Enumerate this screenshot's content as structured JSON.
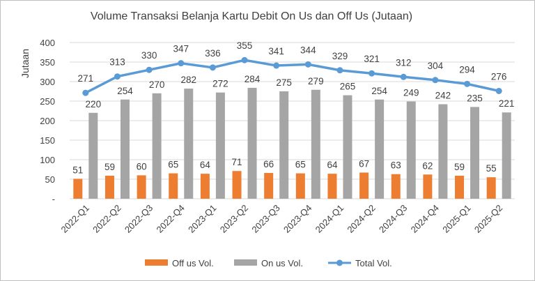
{
  "chart_data": {
    "type": "bar",
    "title": "Volume Transaksi Belanja Kartu Debit On Us dan Off Us (Jutaan)",
    "ylabel": "Jutaan",
    "xlabel": "",
    "ylim": [
      0,
      400
    ],
    "yticks": [
      "-",
      "50",
      "100",
      "150",
      "200",
      "250",
      "300",
      "350",
      "400"
    ],
    "grid": true,
    "legend_position": "bottom",
    "categories": [
      "2022-Q1",
      "2022-Q2",
      "2022-Q3",
      "2022-Q4",
      "2023-Q1",
      "2023-Q2",
      "2023-Q3",
      "2023-Q4",
      "2024-Q1",
      "2024-Q2",
      "2024-Q3",
      "2024-Q4",
      "2025-Q1",
      "2025-Q2"
    ],
    "series": [
      {
        "name": "Off us Vol.",
        "type": "bar",
        "color": "#ed7d31",
        "values": [
          51,
          59,
          60,
          65,
          64,
          71,
          66,
          65,
          64,
          67,
          63,
          62,
          59,
          55
        ]
      },
      {
        "name": "On us Vol.",
        "type": "bar",
        "color": "#a5a5a5",
        "values": [
          220,
          254,
          270,
          282,
          272,
          284,
          275,
          279,
          265,
          254,
          249,
          242,
          235,
          221
        ]
      },
      {
        "name": "Total Vol.",
        "type": "line",
        "color": "#5b9bd5",
        "values": [
          271,
          313,
          330,
          347,
          336,
          355,
          341,
          344,
          329,
          321,
          312,
          304,
          294,
          276
        ]
      }
    ]
  }
}
